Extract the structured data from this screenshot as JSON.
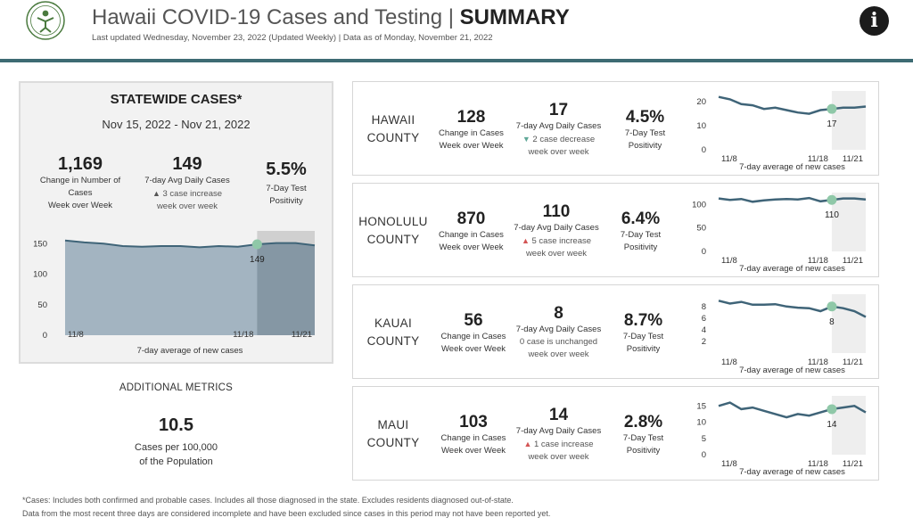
{
  "header": {
    "title_main": "Hawaii COVID-19 Cases and Testing | ",
    "title_bold": "SUMMARY",
    "subtitle": "Last updated  Wednesday, November 23, 2022 (Updated Weekly) | Data as of Monday, November 21, 2022",
    "logo_icon": "hawaii-doh-seal-icon",
    "info_icon": "info-icon"
  },
  "statewide": {
    "title": "STATEWIDE CASES*",
    "date_range": "Nov 15, 2022 - Nov 21, 2022",
    "change_value": "1,169",
    "change_label_1": "Change in Number of",
    "change_label_2": "Cases",
    "change_label_3": "Week over Week",
    "avg_value": "149",
    "avg_label": "7-day Avg Daily Cases",
    "avg_note_1": "3 case increase",
    "avg_note_2": "week over week",
    "pos_value": "5.5%",
    "pos_label_1": "7-Day Test",
    "pos_label_2": "Positivity"
  },
  "additional": {
    "title": "ADDITIONAL METRICS",
    "value": "10.5",
    "label_1": "Cases per 100,000",
    "label_2": "of the Population"
  },
  "counties": [
    {
      "name_1": "HAWAII",
      "name_2": "COUNTY",
      "change_value": "128",
      "change_label_1": "Change in Cases",
      "change_label_2": "Week over Week",
      "avg_value": "17",
      "avg_label": "7-day Avg Daily Cases",
      "avg_note_1": "2 case decrease",
      "avg_note_2": "week over week",
      "trend": "down",
      "pos_value": "4.5%",
      "pos_label_1": "7-Day Test",
      "pos_label_2": "Positivity"
    },
    {
      "name_1": "HONOLULU",
      "name_2": "COUNTY",
      "change_value": "870",
      "change_label_1": "Change in Cases",
      "change_label_2": "Week over Week",
      "avg_value": "110",
      "avg_label": "7-day Avg Daily Cases",
      "avg_note_1": "5 case increase",
      "avg_note_2": "week over week",
      "trend": "up",
      "pos_value": "6.4%",
      "pos_label_1": "7-Day Test",
      "pos_label_2": "Positivity"
    },
    {
      "name_1": "KAUAI",
      "name_2": "COUNTY",
      "change_value": "56",
      "change_label_1": "Change in Cases",
      "change_label_2": "Week over Week",
      "avg_value": "8",
      "avg_label": "7-day Avg Daily Cases",
      "avg_note_1": "0 case is unchanged",
      "avg_note_2": "week over week",
      "trend": "none",
      "pos_value": "8.7%",
      "pos_label_1": "7-Day Test",
      "pos_label_2": "Positivity"
    },
    {
      "name_1": "MAUI",
      "name_2": "COUNTY",
      "change_value": "103",
      "change_label_1": "Change in Cases",
      "change_label_2": "Week over Week",
      "avg_value": "14",
      "avg_label": "7-day Avg Daily Cases",
      "avg_note_1": "1 case increase",
      "avg_note_2": "week over week",
      "trend": "up",
      "pos_value": "2.8%",
      "pos_label_1": "7-Day Test",
      "pos_label_2": "Positivity"
    }
  ],
  "footer": {
    "line_1": "*Cases: Includes both confirmed and probable cases. Includes all those diagnosed in the state. Excludes residents diagnosed out-of-state.",
    "line_2": "Data from the most recent three days are considered incomplete and have been excluded since cases in this period may not have been reported yet."
  },
  "colors": {
    "line": "#3f6478",
    "area": "#a3b4c1",
    "area_highlight": "#8597a4",
    "marker": "#8fc8a8",
    "header_rule": "#3d6b73"
  },
  "chart_data": [
    {
      "type": "area",
      "name": "statewide",
      "xlabel": "7-day average of new cases",
      "x_tick_labels": [
        "11/8",
        "11/18",
        "11/21"
      ],
      "x_tick_index": [
        0,
        10,
        13
      ],
      "y_ticks": [
        0,
        50,
        100,
        150
      ],
      "ylim": [
        0,
        165
      ],
      "values": [
        155,
        152,
        150,
        146,
        145,
        146,
        146,
        144,
        146,
        145,
        149,
        151,
        151,
        147
      ],
      "highlight_index": 10,
      "highlight_label": "149",
      "incomplete_from_index": 10
    },
    {
      "type": "line",
      "name": "hawaii-county",
      "xlabel": "7-day average of new cases",
      "x_tick_labels": [
        "11/8",
        "11/18",
        "11/21"
      ],
      "x_tick_index": [
        0,
        10,
        13
      ],
      "y_ticks": [
        0,
        10,
        20
      ],
      "ylim": [
        0,
        23
      ],
      "values": [
        22,
        21,
        19,
        18.5,
        17,
        17.5,
        16.5,
        15.5,
        15,
        16.5,
        17,
        17.5,
        17.5,
        18
      ],
      "highlight_index": 10,
      "highlight_label": "17",
      "incomplete_from_index": 10
    },
    {
      "type": "line",
      "name": "honolulu-county",
      "xlabel": "7-day average of new cases",
      "x_tick_labels": [
        "11/8",
        "11/18",
        "11/21"
      ],
      "x_tick_index": [
        0,
        10,
        13
      ],
      "y_ticks": [
        0,
        50,
        100
      ],
      "ylim": [
        0,
        118
      ],
      "values": [
        113,
        110,
        112,
        106,
        109,
        111,
        112,
        111,
        114,
        107,
        110,
        113,
        113,
        111
      ],
      "highlight_index": 10,
      "highlight_label": "110",
      "incomplete_from_index": 10
    },
    {
      "type": "line",
      "name": "kauai-county",
      "xlabel": "7-day average of new cases",
      "x_tick_labels": [
        "11/8",
        "11/18",
        "11/21"
      ],
      "x_tick_index": [
        0,
        10,
        13
      ],
      "y_ticks": [
        2,
        4,
        6,
        8
      ],
      "ylim": [
        0,
        9.5
      ],
      "values": [
        9,
        8.5,
        8.8,
        8.3,
        8.3,
        8.4,
        8,
        7.8,
        7.7,
        7.2,
        8,
        7.7,
        7.2,
        6.2
      ],
      "highlight_index": 10,
      "highlight_label": "8",
      "incomplete_from_index": 10
    },
    {
      "type": "line",
      "name": "maui-county",
      "xlabel": "7-day average of new cases",
      "x_tick_labels": [
        "11/8",
        "11/18",
        "11/21"
      ],
      "x_tick_index": [
        0,
        10,
        13
      ],
      "y_ticks": [
        0,
        5,
        10,
        15
      ],
      "ylim": [
        0,
        17
      ],
      "values": [
        15,
        16,
        14,
        14.5,
        13.5,
        12.5,
        11.5,
        12.5,
        12,
        13,
        14,
        14.5,
        15,
        13
      ],
      "highlight_index": 10,
      "highlight_label": "14",
      "incomplete_from_index": 10
    }
  ]
}
